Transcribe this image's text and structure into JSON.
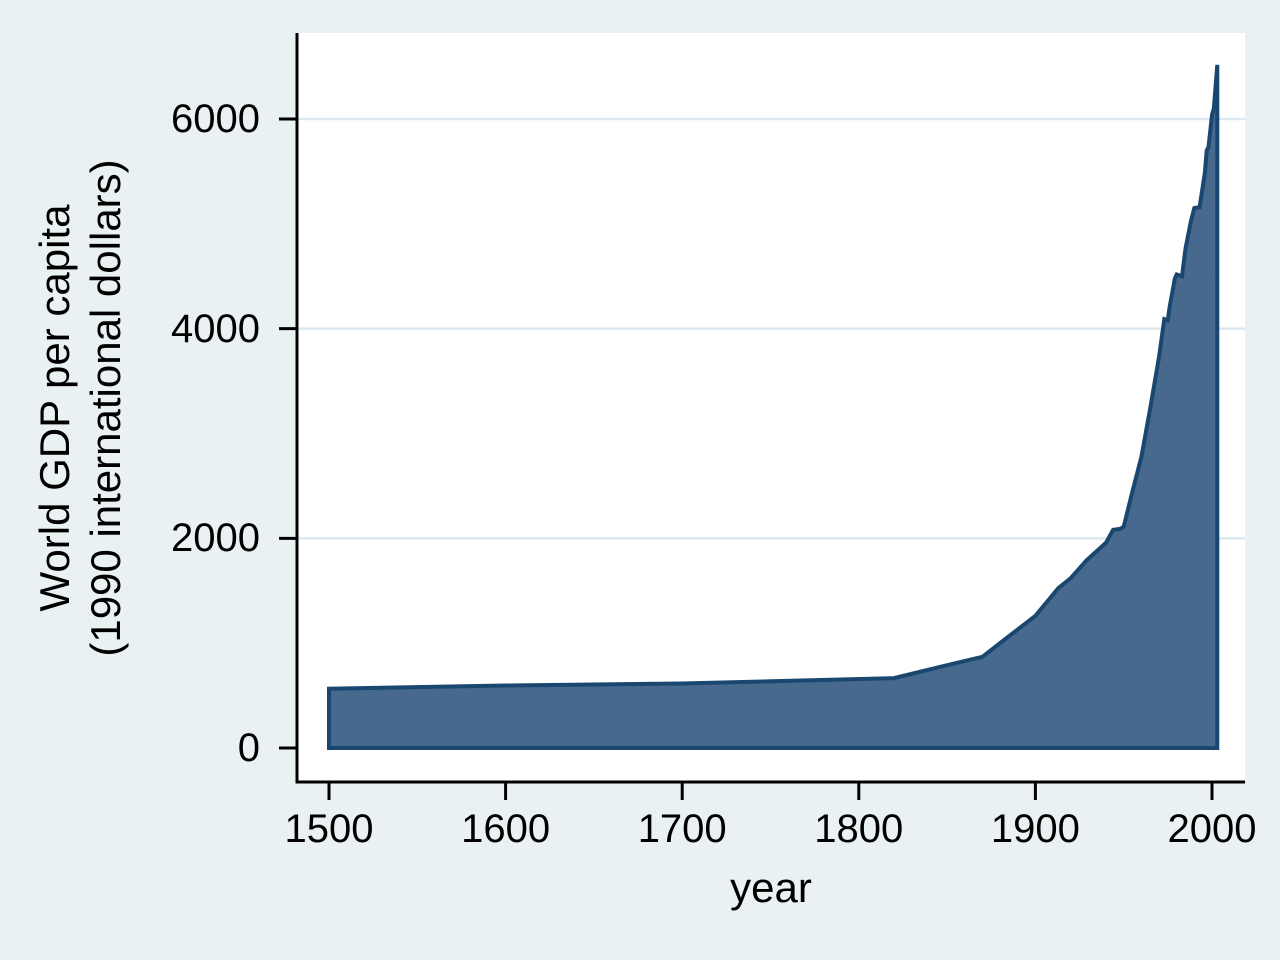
{
  "figure": {
    "background_color": "#eaf1f2",
    "plot_background_color": "#ffffff",
    "grid_color": "#dceaf0",
    "axis_color": "#000000",
    "text_color": "#000000"
  },
  "chart_data": {
    "type": "area",
    "title": "",
    "xlabel": "year",
    "ylabel_lines": [
      "World GDP per capita",
      "(1990 international dollars)"
    ],
    "xticks": [
      1500,
      1600,
      1700,
      1800,
      1900,
      2000
    ],
    "yticks": [
      0,
      2000,
      4000,
      6000
    ],
    "xlim": [
      1500,
      2003
    ],
    "ylim": [
      0,
      6600
    ],
    "grid": "horizontal",
    "series": [
      {
        "name": "World GDP per capita",
        "fill_color": "#47698d",
        "line_color": "#1a476f",
        "points": [
          [
            1500,
            566
          ],
          [
            1600,
            596
          ],
          [
            1700,
            615
          ],
          [
            1820,
            667
          ],
          [
            1850,
            790
          ],
          [
            1870,
            870
          ],
          [
            1890,
            1131
          ],
          [
            1900,
            1261
          ],
          [
            1913,
            1526
          ],
          [
            1920,
            1620
          ],
          [
            1929,
            1790
          ],
          [
            1940,
            1958
          ],
          [
            1944,
            2080
          ],
          [
            1948,
            2090
          ],
          [
            1950,
            2111
          ],
          [
            1955,
            2450
          ],
          [
            1960,
            2777
          ],
          [
            1965,
            3240
          ],
          [
            1970,
            3729
          ],
          [
            1973,
            4091
          ],
          [
            1975,
            4081
          ],
          [
            1976,
            4205
          ],
          [
            1979,
            4480
          ],
          [
            1980,
            4517
          ],
          [
            1983,
            4500
          ],
          [
            1985,
            4764
          ],
          [
            1988,
            5020
          ],
          [
            1990,
            5150
          ],
          [
            1993,
            5160
          ],
          [
            1996,
            5490
          ],
          [
            1997,
            5700
          ],
          [
            1998,
            5732
          ],
          [
            2000,
            6038
          ],
          [
            2001,
            6100
          ],
          [
            2003,
            6516
          ]
        ]
      }
    ]
  }
}
